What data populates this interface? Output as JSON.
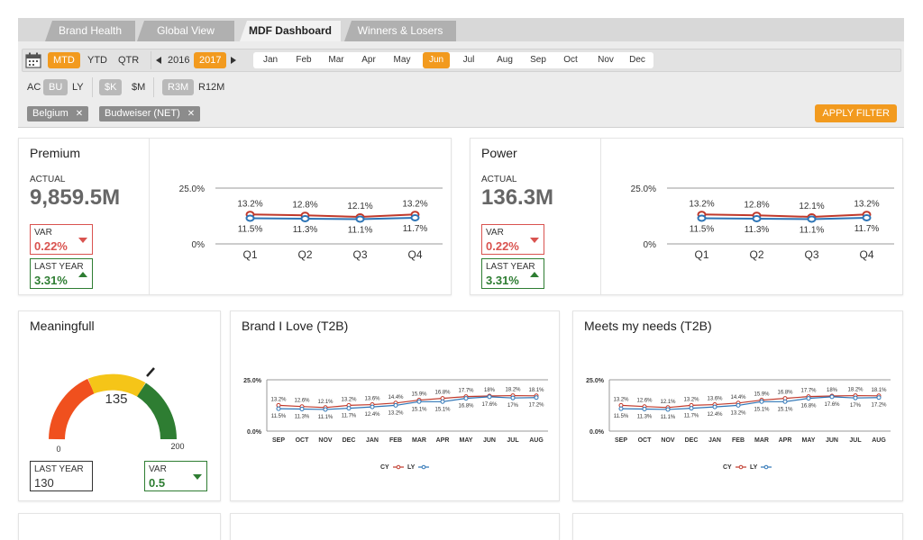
{
  "tabs": [
    {
      "label": "Brand Health",
      "active": false
    },
    {
      "label": "Global View",
      "active": false
    },
    {
      "label": "MDF Dashboard",
      "active": true
    },
    {
      "label": "Winners & Losers",
      "active": false
    }
  ],
  "filters": {
    "periods": [
      "MTD",
      "YTD",
      "QTR"
    ],
    "active_period": "MTD",
    "years": [
      "2016",
      "2017"
    ],
    "active_year": "2017",
    "months": [
      "Jan",
      "Feb",
      "Mar",
      "Apr",
      "May",
      "Jun",
      "Jul",
      "Aug",
      "Sep",
      "Oct",
      "Nov",
      "Dec"
    ],
    "active_month": "Jun",
    "compare": [
      "AC",
      "BU",
      "LY"
    ],
    "active_compare": "BU",
    "units": [
      "$K",
      "$M"
    ],
    "active_unit": "$K",
    "rolling": [
      "R3M",
      "R12M"
    ],
    "active_rolling": "R3M",
    "chips": [
      "Belgium",
      "Budweiser (NET)"
    ],
    "apply_label": "APPLY FILTER"
  },
  "premium": {
    "title": "Premium",
    "actual_label": "ACTUAL",
    "actual_value": "9,859.5M",
    "var_label": "VAR",
    "var_value": "0.22%",
    "ly_label": "LAST YEAR",
    "ly_value": "3.31%",
    "chart": {
      "y_labels": [
        "25.0%",
        "0%"
      ],
      "categories": [
        "Q1",
        "Q2",
        "Q3",
        "Q4"
      ],
      "cy": [
        13.2,
        12.8,
        12.1,
        13.2
      ],
      "cy_labels": [
        "13.2%",
        "12.8%",
        "12.1%",
        "13.2%"
      ],
      "ly": [
        11.5,
        11.3,
        11.1,
        11.7
      ],
      "ly_labels": [
        "11.5%",
        "11.3%",
        "11.1%",
        "11.7%"
      ]
    }
  },
  "power": {
    "title": "Power",
    "actual_label": "ACTUAL",
    "actual_value": "136.3M",
    "var_label": "VAR",
    "var_value": "0.22%",
    "ly_label": "LAST YEAR",
    "ly_value": "3.31%",
    "chart": {
      "y_labels": [
        "25.0%",
        "0%"
      ],
      "categories": [
        "Q1",
        "Q2",
        "Q3",
        "Q4"
      ],
      "cy": [
        13.2,
        12.8,
        12.1,
        13.2
      ],
      "cy_labels": [
        "13.2%",
        "12.8%",
        "12.1%",
        "13.2%"
      ],
      "ly": [
        11.5,
        11.3,
        11.1,
        11.7
      ],
      "ly_labels": [
        "11.5%",
        "11.3%",
        "11.1%",
        "11.7%"
      ]
    }
  },
  "meaningfull": {
    "title": "Meaningfull",
    "gauge_value": "135",
    "gauge_min": "0",
    "gauge_max": "200",
    "ly_label": "LAST YEAR",
    "ly_value": "130",
    "var_label": "VAR",
    "var_value": "0.5"
  },
  "chart_data": [
    {
      "type": "line",
      "title": "Brand I Love (T2B)",
      "x": [
        "SEP",
        "OCT",
        "NOV",
        "DEC",
        "JAN",
        "FEB",
        "MAR",
        "APR",
        "MAY",
        "JUN",
        "JUL",
        "AUG"
      ],
      "ylim": [
        0,
        25
      ],
      "y_tick_labels": [
        "25.0%",
        "0.0%"
      ],
      "series": [
        {
          "name": "CY",
          "values": [
            13.2,
            12.6,
            12.1,
            13.2,
            13.6,
            14.4,
            15.9,
            16.8,
            17.7,
            18,
            18.2,
            18.1
          ],
          "labels": [
            "13.2%",
            "12.6%",
            "12.1%",
            "13.2%",
            "13.6%",
            "14.4%",
            "15.9%",
            "16.8%",
            "17.7%",
            "18%",
            "18.2%",
            "18.1%"
          ],
          "color": "#c0392b"
        },
        {
          "name": "LY",
          "values": [
            11.5,
            11.3,
            11.1,
            11.7,
            12.4,
            13.2,
            15.1,
            15.1,
            16.8,
            17.6,
            17,
            17.2
          ],
          "labels": [
            "11.5%",
            "11.3%",
            "11.1%",
            "11.7%",
            "12.4%",
            "13.2%",
            "15.1%",
            "15.1%",
            "16.8%",
            "17.6%",
            "17%",
            "17.2%"
          ],
          "color": "#2e75b6"
        }
      ],
      "legend": "bottom"
    },
    {
      "type": "line",
      "title": "Meets my needs (T2B)",
      "x": [
        "SEP",
        "OCT",
        "NOV",
        "DEC",
        "JAN",
        "FEB",
        "MAR",
        "APR",
        "MAY",
        "JUN",
        "JUL",
        "AUG"
      ],
      "ylim": [
        0,
        25
      ],
      "y_tick_labels": [
        "25.0%",
        "0.0%"
      ],
      "series": [
        {
          "name": "CY",
          "values": [
            13.2,
            12.6,
            12.1,
            13.2,
            13.6,
            14.4,
            15.9,
            16.8,
            17.7,
            18,
            18.2,
            18.1
          ],
          "labels": [
            "13.2%",
            "12.6%",
            "12.1%",
            "13.2%",
            "13.6%",
            "14.4%",
            "15.9%",
            "16.8%",
            "17.7%",
            "18%",
            "18.2%",
            "18.1%"
          ],
          "color": "#c0392b"
        },
        {
          "name": "LY",
          "values": [
            11.5,
            11.3,
            11.1,
            11.7,
            12.4,
            13.2,
            15.1,
            15.1,
            16.8,
            17.6,
            17,
            17.2
          ],
          "labels": [
            "11.5%",
            "11.3%",
            "11.1%",
            "11.7%",
            "12.4%",
            "13.2%",
            "15.1%",
            "15.1%",
            "16.8%",
            "17.6%",
            "17%",
            "17.2%"
          ],
          "color": "#2e75b6"
        }
      ],
      "legend": "bottom"
    }
  ],
  "colors": {
    "accent": "#f29a1e",
    "cy": "#c0392b",
    "ly": "#2e75b6",
    "negative": "#d9534f",
    "positive": "#2e7d32"
  }
}
